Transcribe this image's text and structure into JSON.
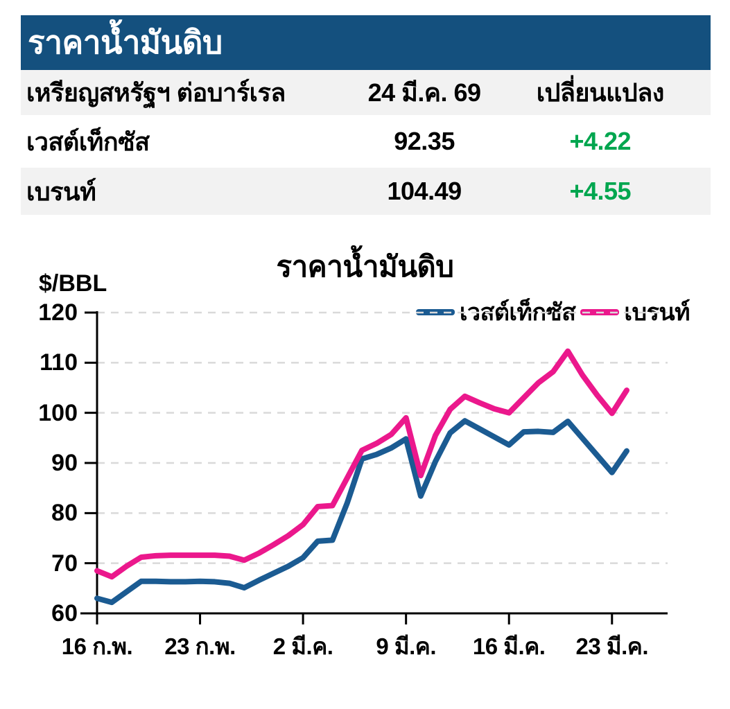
{
  "header": {
    "title": "ราคาน้ำมันดิบ",
    "bg_color": "#14507E",
    "text_color": "#ffffff"
  },
  "table": {
    "row_alt_bg": "#F2F2F2",
    "change_color": "#00A64F",
    "header": {
      "unit_label": "เหรียญสหรัฐฯ ต่อบาร์เรล",
      "date": "24 มี.ค. 69",
      "change_label": "เปลี่ยนแปลง"
    },
    "rows": [
      {
        "name": "เวสต์เท็กซัส",
        "price": "92.35",
        "change": "+4.22"
      },
      {
        "name": "เบรนท์",
        "price": "104.49",
        "change": "+4.55"
      }
    ]
  },
  "chart_data": {
    "type": "line",
    "title": "ราคาน้ำมันดิบ",
    "ylabel": "$/BBL",
    "ylim": [
      60,
      120
    ],
    "yticks": [
      60,
      70,
      80,
      90,
      100,
      110,
      120
    ],
    "xtick_labels": [
      "16 ก.พ.",
      "23 ก.พ.",
      "2 มี.ค.",
      "9 มี.ค.",
      "16 มี.ค.",
      "23 มี.ค."
    ],
    "xtick_day_index": [
      0,
      7,
      14,
      21,
      28,
      35
    ],
    "x_is_daily_index": true,
    "n_points": 37,
    "grid": "horizontal-dashed",
    "grid_color": "#D9D9D9",
    "axis_color": "#000000",
    "legend_position": "top-right",
    "series": [
      {
        "name": "เวสต์เท็กซัส",
        "color": "#1B5B92",
        "values": [
          63.0,
          62.2,
          64.3,
          66.4,
          66.4,
          66.3,
          66.3,
          66.4,
          66.3,
          66.0,
          65.1,
          66.6,
          68.0,
          69.4,
          71.1,
          74.4,
          74.6,
          82.0,
          90.8,
          91.7,
          93.0,
          94.8,
          83.4,
          90.3,
          96.0,
          98.4,
          96.8,
          95.2,
          93.6,
          96.2,
          96.3,
          96.1,
          98.3,
          94.9,
          91.5,
          88.1,
          92.4
        ]
      },
      {
        "name": "เบรนท์",
        "color": "#EB188C",
        "values": [
          68.5,
          67.3,
          69.4,
          71.2,
          71.5,
          71.6,
          71.6,
          71.6,
          71.6,
          71.4,
          70.6,
          72.0,
          73.7,
          75.5,
          77.7,
          81.3,
          81.5,
          87.0,
          92.5,
          93.9,
          95.7,
          99.0,
          87.5,
          95.5,
          100.7,
          103.3,
          102.0,
          100.8,
          100.0,
          103.0,
          106.0,
          108.2,
          112.3,
          107.5,
          103.5,
          99.9,
          104.5
        ]
      }
    ]
  }
}
